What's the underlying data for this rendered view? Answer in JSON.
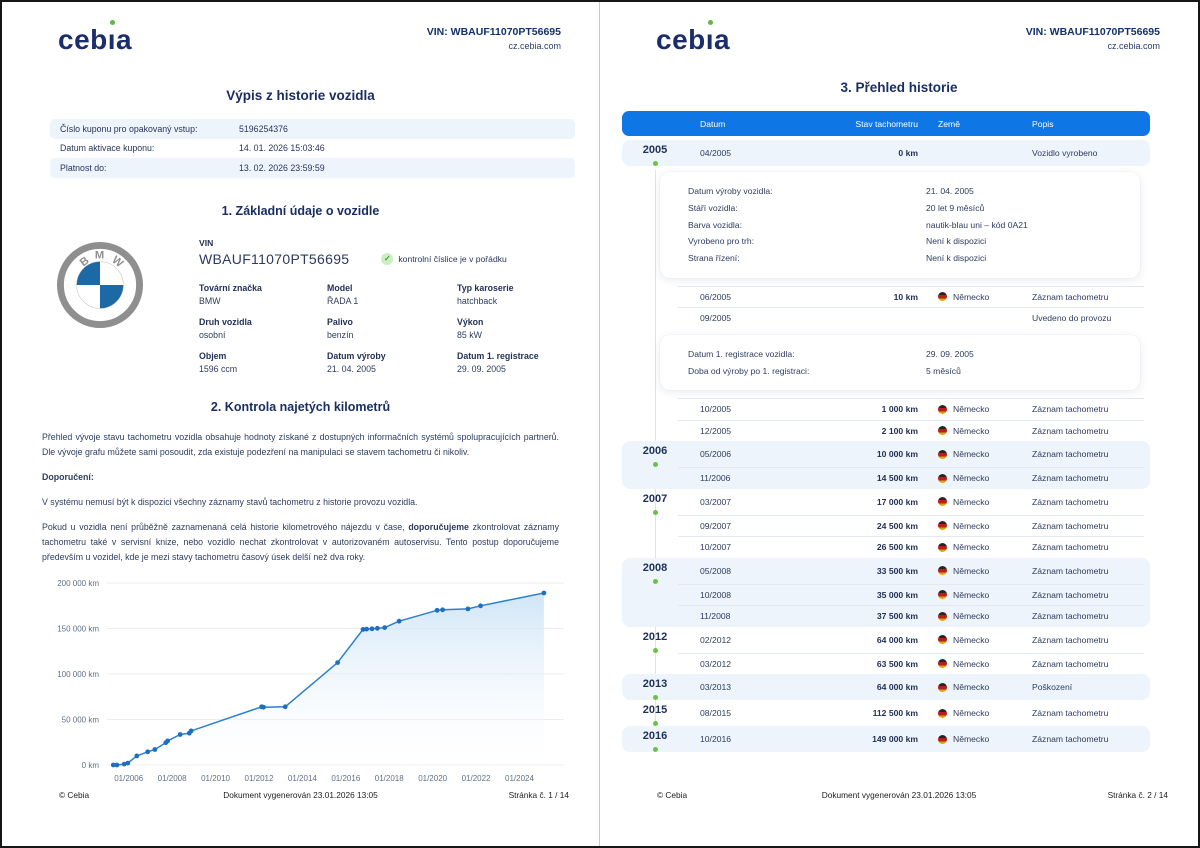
{
  "header": {
    "vin": "VIN: WBAUF11070PT56695",
    "site": "cz.cebia.com",
    "logo_text": "cebia",
    "logo_accent_color": "#62b643"
  },
  "page1": {
    "title": "Výpis z historie vozidla",
    "coupon": {
      "rows": [
        {
          "label": "Číslo kuponu pro opakovaný vstup:",
          "value": "5196254376"
        },
        {
          "label": "Datum aktivace kuponu:",
          "value": "14. 01. 2026 15:03:46"
        },
        {
          "label": "Platnost do:",
          "value": "13. 02. 2026 23:59:59"
        }
      ]
    },
    "section1": {
      "title": "1. Základní údaje o vozidle",
      "vin_label": "VIN",
      "vin_value": "WBAUF11070PT56695",
      "vin_check": "kontrolní číslice je v pořádku",
      "fields": [
        {
          "label": "Tovární značka",
          "value": "BMW"
        },
        {
          "label": "Model",
          "value": "ŘADA 1"
        },
        {
          "label": "Typ karoserie",
          "value": "hatchback"
        },
        {
          "label": "Druh vozidla",
          "value": "osobní"
        },
        {
          "label": "Palivo",
          "value": "benzín"
        },
        {
          "label": "Výkon",
          "value": "85 kW"
        },
        {
          "label": "Objem",
          "value": "1596 ccm"
        },
        {
          "label": "Datum výroby",
          "value": "21. 04. 2005"
        },
        {
          "label": "Datum 1. registrace",
          "value": "29. 09. 2005"
        }
      ]
    },
    "section2": {
      "title": "2. Kontrola najetých kilometrů",
      "para1": "Přehled vývoje stavu tachometru vozidla obsahuje hodnoty získané z dostupných informačních systémů spolupracujících partnerů. Dle vývoje grafu můžete sami posoudit, zda existuje podezření na manipulaci se stavem tachometru či nikoliv.",
      "reco_label": "Doporučení:",
      "para2": "V systému nemusí být k dispozici všechny záznamy stavů tachometru z historie provozu vozidla.",
      "para3_pre": "Pokud u vozidla není průběžně zaznamenaná celá historie kilometrového nájezdu v čase, ",
      "para3_bold": "doporučujeme",
      "para3_post": " zkontrolovat záznamy tachometru také v servisní knize, nebo vozidlo nechat zkontrolovat v autorizovaném autoservisu. Tento postup doporučujeme především u vozidel, kde je mezi stavy tachometru časový úsek delší než dva roky."
    },
    "footer": {
      "copyright": "© Cebia",
      "generated": "Dokument vygenerován 23.01.2026 13:05",
      "page": "Stránka č. 1 / 14"
    }
  },
  "chart_data": {
    "type": "line",
    "title": "",
    "xlabel": "",
    "ylabel": "km",
    "ylim": [
      0,
      200000
    ],
    "yticks": [
      0,
      50000,
      100000,
      150000,
      200000
    ],
    "ytick_labels": [
      "0 km",
      "50 000 km",
      "100 000 km",
      "150 000 km",
      "200 000 km"
    ],
    "xticks": [
      "01/2006",
      "01/2008",
      "01/2010",
      "01/2012",
      "01/2014",
      "01/2016",
      "01/2018",
      "01/2020",
      "01/2022",
      "01/2024"
    ],
    "x_range": [
      "01/2005",
      "10/2025"
    ],
    "grid": true,
    "legend": false,
    "line_color": "#2e7fd0",
    "point_color": "#1e6fc0",
    "points": [
      {
        "date": "04/2005",
        "km": 0
      },
      {
        "date": "06/2005",
        "km": 10
      },
      {
        "date": "10/2005",
        "km": 1000
      },
      {
        "date": "12/2005",
        "km": 2100
      },
      {
        "date": "05/2006",
        "km": 10000
      },
      {
        "date": "11/2006",
        "km": 14500
      },
      {
        "date": "03/2007",
        "km": 17000
      },
      {
        "date": "09/2007",
        "km": 24500
      },
      {
        "date": "10/2007",
        "km": 26500
      },
      {
        "date": "05/2008",
        "km": 33500
      },
      {
        "date": "10/2008",
        "km": 35000
      },
      {
        "date": "11/2008",
        "km": 37500
      },
      {
        "date": "02/2012",
        "km": 64000
      },
      {
        "date": "03/2012",
        "km": 63500
      },
      {
        "date": "03/2013",
        "km": 64000
      },
      {
        "date": "08/2015",
        "km": 112500
      },
      {
        "date": "10/2016",
        "km": 149000
      },
      {
        "date": "12/2016",
        "km": 149300
      },
      {
        "date": "03/2017",
        "km": 149700
      },
      {
        "date": "06/2017",
        "km": 150200
      },
      {
        "date": "10/2017",
        "km": 151000
      },
      {
        "date": "06/2018",
        "km": 158000
      },
      {
        "date": "03/2020",
        "km": 170000
      },
      {
        "date": "06/2020",
        "km": 170500
      },
      {
        "date": "08/2021",
        "km": 171500
      },
      {
        "date": "03/2022",
        "km": 175000
      },
      {
        "date": "02/2025",
        "km": 189000
      }
    ]
  },
  "page2": {
    "title": "3. Přehled historie",
    "table": {
      "headers": [
        "Datum",
        "Stav tachometru",
        "Země",
        "Popis"
      ],
      "items": [
        {
          "type": "row",
          "year": "2005",
          "band": true,
          "round": "all",
          "date": "04/2005",
          "km": "0 km",
          "country": "",
          "desc": "Vozidlo vyrobeno"
        },
        {
          "type": "card",
          "rows": [
            {
              "label": "Datum výroby vozidla:",
              "value": "21. 04. 2005"
            },
            {
              "label": "Stáří vozidla:",
              "value": "20 let 9 měsíců"
            },
            {
              "label": "Barva vozidla:",
              "value": "nautik-blau uni – kód 0A21"
            },
            {
              "label": "Vyrobeno pro trh:",
              "value": "Není k dispozici"
            },
            {
              "label": "Strana řízení:",
              "value": "Není k dispozici"
            }
          ]
        },
        {
          "type": "row",
          "date": "06/2005",
          "km": "10 km",
          "country": "Německo",
          "desc": "Záznam tachometru",
          "sep": true
        },
        {
          "type": "row",
          "date": "09/2005",
          "km": "",
          "country": "",
          "desc": "Uvedeno do provozu",
          "sep": true
        },
        {
          "type": "card",
          "rows": [
            {
              "label": "Datum 1. registrace vozidla:",
              "value": "29. 09. 2005"
            },
            {
              "label": "Doba od výroby po 1. registraci:",
              "value": "5 měsíců"
            }
          ]
        },
        {
          "type": "row",
          "date": "10/2005",
          "km": "1 000 km",
          "country": "Německo",
          "desc": "Záznam tachometru",
          "sep": true
        },
        {
          "type": "row",
          "date": "12/2005",
          "km": "2 100 km",
          "country": "Německo",
          "desc": "Záznam tachometru",
          "sep": true
        },
        {
          "type": "row",
          "year": "2006",
          "band": true,
          "round": "top",
          "date": "05/2006",
          "km": "10 000 km",
          "country": "Německo",
          "desc": "Záznam tachometru"
        },
        {
          "type": "row",
          "band": true,
          "round": "bot",
          "date": "11/2006",
          "km": "14 500 km",
          "country": "Německo",
          "desc": "Záznam tachometru",
          "sep": true
        },
        {
          "type": "row",
          "year": "2007",
          "date": "03/2007",
          "km": "17 000 km",
          "country": "Německo",
          "desc": "Záznam tachometru"
        },
        {
          "type": "row",
          "date": "09/2007",
          "km": "24 500 km",
          "country": "Německo",
          "desc": "Záznam tachometru",
          "sep": true
        },
        {
          "type": "row",
          "date": "10/2007",
          "km": "26 500 km",
          "country": "Německo",
          "desc": "Záznam tachometru",
          "sep": true
        },
        {
          "type": "row",
          "year": "2008",
          "band": true,
          "round": "top",
          "date": "05/2008",
          "km": "33 500 km",
          "country": "Německo",
          "desc": "Záznam tachometru"
        },
        {
          "type": "row",
          "band": true,
          "date": "10/2008",
          "km": "35 000 km",
          "country": "Německo",
          "desc": "Záznam tachometru",
          "sep": true
        },
        {
          "type": "row",
          "band": true,
          "round": "bot",
          "date": "11/2008",
          "km": "37 500 km",
          "country": "Německo",
          "desc": "Záznam tachometru",
          "sep": true
        },
        {
          "type": "row",
          "year": "2012",
          "date": "02/2012",
          "km": "64 000 km",
          "country": "Německo",
          "desc": "Záznam tachometru"
        },
        {
          "type": "row",
          "date": "03/2012",
          "km": "63 500 km",
          "country": "Německo",
          "desc": "Záznam tachometru",
          "sep": true
        },
        {
          "type": "row",
          "year": "2013",
          "band": true,
          "round": "all",
          "date": "03/2013",
          "km": "64 000 km",
          "country": "Německo",
          "desc": "Poškození"
        },
        {
          "type": "row",
          "year": "2015",
          "date": "08/2015",
          "km": "112 500 km",
          "country": "Německo",
          "desc": "Záznam tachometru"
        },
        {
          "type": "row",
          "year": "2016",
          "band": true,
          "round": "all",
          "date": "10/2016",
          "km": "149 000 km",
          "country": "Německo",
          "desc": "Záznam tachometru"
        }
      ]
    },
    "footer": {
      "copyright": "© Cebia",
      "generated": "Dokument vygenerován 23.01.2026 13:05",
      "page": "Stránka č. 2 / 14"
    }
  }
}
